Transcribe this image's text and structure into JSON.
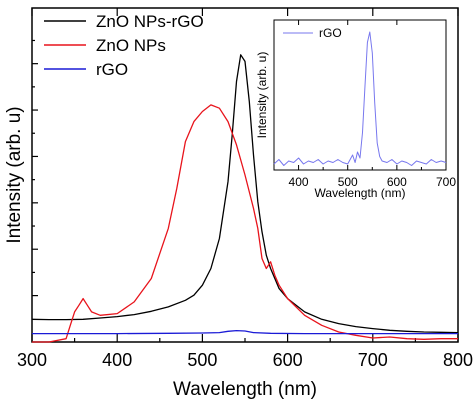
{
  "chart_data": [
    {
      "type": "line",
      "xlabel": "Wavelength (nm)",
      "ylabel": "Intensity (arb. u)",
      "xlim": [
        300,
        800
      ],
      "ylim": [
        0,
        1.0
      ],
      "xticks": [
        300,
        400,
        500,
        600,
        700,
        800
      ],
      "yticks_labeled": false,
      "legend": "top-left",
      "series": [
        {
          "name": "ZnO NPs-rGO",
          "color": "#000000",
          "x": [
            300,
            320,
            340,
            360,
            380,
            400,
            420,
            440,
            460,
            480,
            490,
            500,
            510,
            520,
            530,
            535,
            540,
            545,
            550,
            555,
            560,
            565,
            570,
            575,
            580,
            590,
            600,
            620,
            640,
            660,
            680,
            700,
            720,
            740,
            760,
            780,
            800
          ],
          "y": [
            0.068,
            0.067,
            0.067,
            0.068,
            0.072,
            0.076,
            0.082,
            0.092,
            0.105,
            0.125,
            0.14,
            0.17,
            0.22,
            0.31,
            0.48,
            0.62,
            0.78,
            0.86,
            0.84,
            0.72,
            0.56,
            0.42,
            0.33,
            0.26,
            0.22,
            0.16,
            0.13,
            0.09,
            0.068,
            0.055,
            0.046,
            0.04,
            0.035,
            0.032,
            0.03,
            0.029,
            0.028
          ]
        },
        {
          "name": "ZnO NPs",
          "color": "#e8141c",
          "x": [
            300,
            320,
            340,
            345,
            350,
            355,
            360,
            365,
            370,
            380,
            400,
            420,
            440,
            460,
            470,
            480,
            490,
            500,
            510,
            520,
            530,
            540,
            550,
            560,
            565,
            570,
            575,
            580,
            585,
            590,
            600,
            620,
            640,
            660,
            680,
            700,
            720,
            740,
            760,
            780,
            800
          ],
          "y": [
            0.0,
            0.0,
            0.01,
            0.05,
            0.09,
            0.11,
            0.13,
            0.11,
            0.09,
            0.08,
            0.085,
            0.12,
            0.19,
            0.34,
            0.46,
            0.6,
            0.66,
            0.69,
            0.71,
            0.7,
            0.66,
            0.59,
            0.5,
            0.4,
            0.34,
            0.25,
            0.22,
            0.24,
            0.2,
            0.17,
            0.13,
            0.08,
            0.05,
            0.03,
            0.02,
            0.012,
            0.015,
            0.01,
            0.008,
            0.01,
            0.01
          ]
        },
        {
          "name": "rGO",
          "color": "#1a1ad6",
          "x": [
            300,
            340,
            400,
            460,
            500,
            520,
            530,
            540,
            550,
            560,
            580,
            620,
            700,
            800
          ],
          "y": [
            0.025,
            0.025,
            0.025,
            0.026,
            0.027,
            0.028,
            0.032,
            0.034,
            0.033,
            0.028,
            0.026,
            0.025,
            0.025,
            0.025
          ]
        }
      ]
    },
    {
      "type": "line",
      "xlabel": "Wavelength (nm)",
      "ylabel": "Intensity (arb. u)",
      "xlim": [
        350,
        700
      ],
      "ylim": [
        0,
        1.0
      ],
      "xticks": [
        400,
        500,
        600,
        700
      ],
      "legend": "top-left",
      "series": [
        {
          "name": "rGO",
          "color": "#7777ee",
          "x": [
            350,
            360,
            370,
            380,
            390,
            400,
            410,
            420,
            430,
            440,
            450,
            460,
            470,
            480,
            490,
            500,
            510,
            515,
            520,
            525,
            530,
            535,
            540,
            545,
            550,
            555,
            560,
            565,
            570,
            580,
            590,
            600,
            610,
            620,
            630,
            640,
            650,
            660,
            670,
            680,
            690,
            700
          ],
          "y": [
            0.04,
            0.07,
            0.03,
            0.06,
            0.05,
            0.08,
            0.04,
            0.06,
            0.05,
            0.07,
            0.04,
            0.06,
            0.05,
            0.07,
            0.05,
            0.04,
            0.1,
            0.05,
            0.12,
            0.08,
            0.25,
            0.55,
            0.85,
            0.92,
            0.78,
            0.45,
            0.18,
            0.09,
            0.06,
            0.05,
            0.07,
            0.04,
            0.06,
            0.05,
            0.03,
            0.06,
            0.05,
            0.04,
            0.07,
            0.05,
            0.06,
            0.05
          ]
        }
      ]
    }
  ]
}
